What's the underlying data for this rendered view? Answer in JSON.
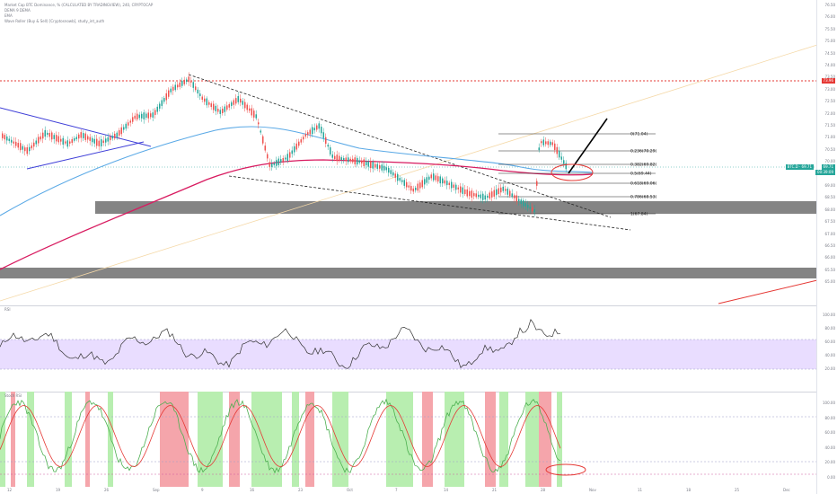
{
  "header": {
    "title": "Market Cap BTC Dominance, % (CALCULATED BY TRADINGVIEW), 240, CRYPTOCAP",
    "line2": "DEMA 9 DEMA",
    "line3": "EMA",
    "line4": "Wave Roller (Buy & Sell) [Cryptosnowb], study_int_auth"
  },
  "main": {
    "price_axis": [
      "76.50",
      "76.00",
      "75.50",
      "75.00",
      "74.50",
      "74.00",
      "73.50",
      "73.00",
      "72.50",
      "72.00",
      "71.50",
      "71.00",
      "70.50",
      "70.00",
      "69.50",
      "69.00",
      "68.50",
      "68.00",
      "67.50",
      "67.00",
      "66.50",
      "66.00",
      "65.50",
      "65.00"
    ],
    "red_level_label": "73.96",
    "current_label_left": "BTC.D · 69.71",
    "current_label_right": "69.71",
    "current_sub": "00:39:09",
    "fib_levels": [
      {
        "ratio": "0",
        "value": "71.04",
        "label": "0(71.04)"
      },
      {
        "ratio": "0.236",
        "value": "70.29",
        "label": "0.236(70.29)"
      },
      {
        "ratio": "0.382",
        "value": "69.82",
        "label": "0.382(69.82)"
      },
      {
        "ratio": "0.5",
        "value": "69.44",
        "label": "0.5(69.44)"
      },
      {
        "ratio": "0.618",
        "value": "69.06",
        "label": "0.618(69.06)"
      },
      {
        "ratio": "0.786",
        "value": "68.53",
        "label": "0.786(68.53)"
      },
      {
        "ratio": "1",
        "value": "67.84",
        "label": "1(67.84)"
      }
    ]
  },
  "rsi": {
    "label": "RSI",
    "axis": [
      "100.00",
      "80.00",
      "60.00",
      "40.00",
      "20.00"
    ]
  },
  "stoch": {
    "label": "Stoch RSI",
    "axis": [
      "100.00",
      "80.00",
      "60.00",
      "40.00",
      "20.00",
      "0.00"
    ]
  },
  "time_axis": [
    "12",
    "19",
    "26",
    "Sep",
    "9",
    "16",
    "23",
    "Oct",
    "7",
    "14",
    "21",
    "28",
    "Nov",
    "11",
    "18",
    "25",
    "Dec"
  ],
  "colors": {
    "candle_up": "#26a69a",
    "candle_down": "#ef5350",
    "ema_red": "#d81b60",
    "ema_blue": "#5aa9e6",
    "rsi_band": "#e9ddff",
    "buy": "#b8eeb0",
    "sell": "#f5a5ab",
    "zone": "#787878"
  }
}
